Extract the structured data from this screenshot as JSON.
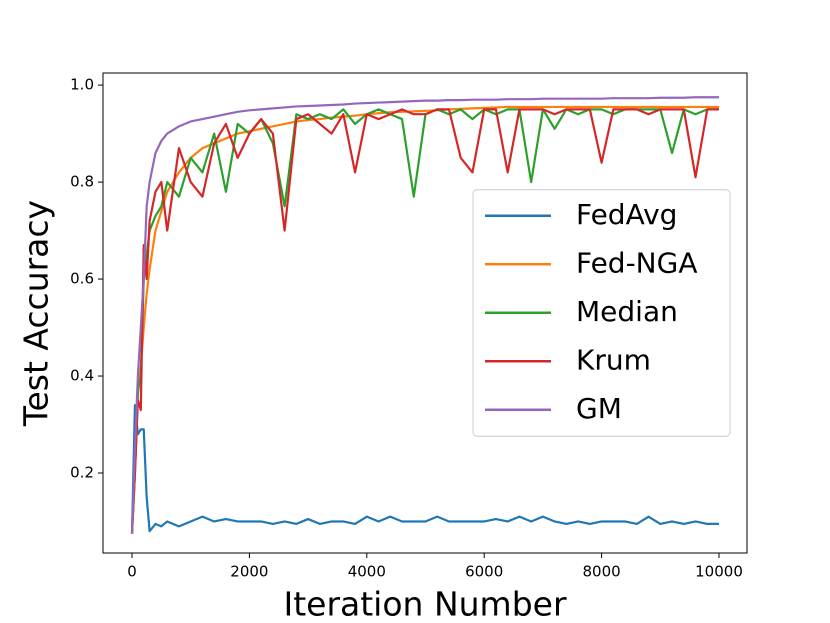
{
  "chart_data": {
    "type": "line",
    "xlabel": "Iteration Number",
    "ylabel": "Test Accuracy",
    "x": [
      0,
      50,
      100,
      150,
      200,
      250,
      300,
      400,
      500,
      600,
      800,
      1000,
      1200,
      1400,
      1600,
      1800,
      2000,
      2200,
      2400,
      2600,
      2800,
      3000,
      3200,
      3400,
      3600,
      3800,
      4000,
      4200,
      4400,
      4600,
      4800,
      5000,
      5200,
      5400,
      5600,
      5800,
      6000,
      6200,
      6400,
      6600,
      6800,
      7000,
      7200,
      7400,
      7600,
      7800,
      8000,
      8200,
      8400,
      8600,
      8800,
      9000,
      9200,
      9400,
      9600,
      9800,
      10000
    ],
    "series": [
      {
        "name": "FedAvg",
        "color": "#1f77b4",
        "values": [
          0.075,
          0.34,
          0.28,
          0.29,
          0.29,
          0.15,
          0.08,
          0.095,
          0.09,
          0.1,
          0.09,
          0.1,
          0.11,
          0.1,
          0.105,
          0.1,
          0.1,
          0.1,
          0.095,
          0.1,
          0.095,
          0.105,
          0.095,
          0.1,
          0.1,
          0.095,
          0.11,
          0.1,
          0.11,
          0.1,
          0.1,
          0.1,
          0.11,
          0.1,
          0.1,
          0.1,
          0.1,
          0.105,
          0.1,
          0.11,
          0.1,
          0.11,
          0.1,
          0.095,
          0.1,
          0.095,
          0.1,
          0.1,
          0.1,
          0.095,
          0.11,
          0.095,
          0.1,
          0.095,
          0.1,
          0.095,
          0.095
        ]
      },
      {
        "name": "Fed-NGA",
        "color": "#ff7f0e",
        "values": [
          0.075,
          0.2,
          0.36,
          0.42,
          0.5,
          0.57,
          0.62,
          0.7,
          0.74,
          0.78,
          0.82,
          0.85,
          0.87,
          0.88,
          0.89,
          0.9,
          0.905,
          0.91,
          0.915,
          0.92,
          0.925,
          0.928,
          0.93,
          0.933,
          0.935,
          0.937,
          0.94,
          0.942,
          0.944,
          0.945,
          0.946,
          0.947,
          0.948,
          0.95,
          0.951,
          0.952,
          0.953,
          0.954,
          0.955,
          0.955,
          0.955,
          0.955,
          0.955,
          0.955,
          0.955,
          0.955,
          0.955,
          0.955,
          0.955,
          0.955,
          0.955,
          0.955,
          0.955,
          0.955,
          0.955,
          0.955,
          0.955
        ]
      },
      {
        "name": "Median",
        "color": "#2ca02c",
        "values": [
          0.075,
          0.2,
          0.37,
          0.4,
          0.6,
          0.65,
          0.7,
          0.73,
          0.75,
          0.8,
          0.77,
          0.85,
          0.82,
          0.9,
          0.78,
          0.92,
          0.9,
          0.93,
          0.88,
          0.75,
          0.94,
          0.93,
          0.94,
          0.93,
          0.95,
          0.92,
          0.94,
          0.95,
          0.94,
          0.93,
          0.77,
          0.94,
          0.95,
          0.94,
          0.95,
          0.93,
          0.95,
          0.94,
          0.95,
          0.95,
          0.8,
          0.95,
          0.91,
          0.95,
          0.94,
          0.95,
          0.95,
          0.94,
          0.95,
          0.95,
          0.95,
          0.95,
          0.86,
          0.95,
          0.94,
          0.95,
          0.95
        ]
      },
      {
        "name": "Krum",
        "color": "#d62728",
        "values": [
          0.075,
          0.2,
          0.35,
          0.33,
          0.67,
          0.6,
          0.72,
          0.78,
          0.8,
          0.7,
          0.87,
          0.8,
          0.77,
          0.88,
          0.92,
          0.85,
          0.9,
          0.93,
          0.9,
          0.7,
          0.93,
          0.94,
          0.92,
          0.9,
          0.94,
          0.82,
          0.94,
          0.93,
          0.94,
          0.95,
          0.94,
          0.94,
          0.95,
          0.95,
          0.85,
          0.82,
          0.95,
          0.95,
          0.82,
          0.95,
          0.95,
          0.95,
          0.94,
          0.95,
          0.95,
          0.95,
          0.84,
          0.95,
          0.95,
          0.95,
          0.94,
          0.95,
          0.95,
          0.95,
          0.81,
          0.95,
          0.95
        ]
      },
      {
        "name": "GM",
        "color": "#9467bd",
        "values": [
          0.075,
          0.25,
          0.4,
          0.5,
          0.6,
          0.75,
          0.8,
          0.86,
          0.885,
          0.9,
          0.915,
          0.925,
          0.93,
          0.935,
          0.94,
          0.945,
          0.948,
          0.95,
          0.952,
          0.954,
          0.956,
          0.957,
          0.958,
          0.959,
          0.96,
          0.962,
          0.963,
          0.964,
          0.965,
          0.966,
          0.967,
          0.968,
          0.968,
          0.969,
          0.969,
          0.97,
          0.97,
          0.97,
          0.971,
          0.971,
          0.971,
          0.972,
          0.972,
          0.972,
          0.972,
          0.972,
          0.972,
          0.973,
          0.973,
          0.973,
          0.973,
          0.974,
          0.974,
          0.974,
          0.975,
          0.975,
          0.975
        ]
      }
    ],
    "xlim": [
      -494,
      10477
    ],
    "ylim": [
      0.035,
      1.025
    ],
    "xticks": [
      0,
      2000,
      4000,
      6000,
      8000,
      10000
    ],
    "yticks": [
      0.2,
      0.4,
      0.6,
      0.8,
      {
        "value": 1,
        "label": "1.0"
      }
    ],
    "legend": "center right"
  }
}
